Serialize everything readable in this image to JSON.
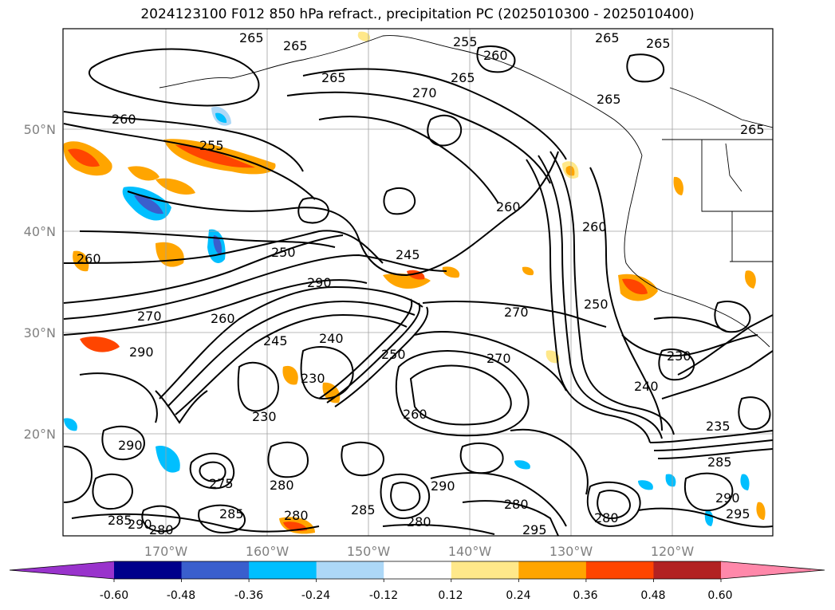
{
  "title": "2024123100 F012 850 hPa refract., precipitation PC (2025010300 - 2025010400)",
  "latitude_labels": [
    "50°N",
    "40°N",
    "30°N",
    "20°N"
  ],
  "longitude_labels": [
    "170°W",
    "160°W",
    "150°W",
    "140°W",
    "130°W",
    "120°W"
  ],
  "colorbar": {
    "colors": [
      "#9933cc",
      "#00008b",
      "#3a5fcd",
      "#00bfff",
      "#add8f7",
      "#ffffff",
      "#ffe88a",
      "#ffa500",
      "#ff4500",
      "#b22222",
      "#ff88aa"
    ],
    "tick_labels": [
      "-0.60",
      "-0.48",
      "-0.36",
      "-0.24",
      "-0.12",
      "0.12",
      "0.24",
      "0.36",
      "0.48",
      "0.60"
    ]
  },
  "contour_labels": [
    "265",
    "265",
    "255",
    "260",
    "265",
    "265",
    "265",
    "270",
    "265",
    "260",
    "255",
    "265",
    "260",
    "265",
    "260",
    "250",
    "245",
    "290",
    "260",
    "270",
    "270",
    "230",
    "260",
    "245",
    "240",
    "250",
    "230",
    "270",
    "290",
    "250",
    "290",
    "230",
    "240",
    "235",
    "260",
    "290",
    "285",
    "280",
    "275",
    "280",
    "290",
    "280",
    "285",
    "295",
    "290",
    "295",
    "285",
    "280",
    "280",
    "280",
    "285"
  ]
}
